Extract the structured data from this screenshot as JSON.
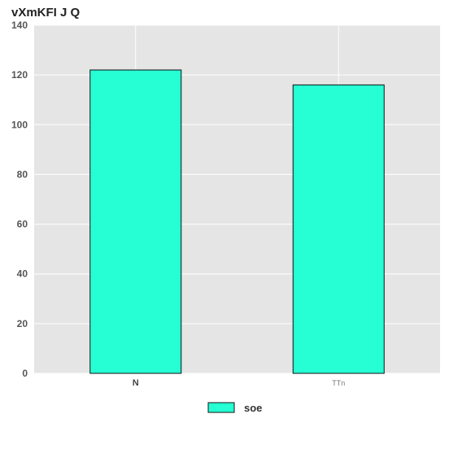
{
  "chart_data": {
    "type": "bar",
    "title": "vXmKFI J Q",
    "xlabel": "",
    "ylabel": "",
    "categories": [
      "N",
      "TTn"
    ],
    "series": [
      {
        "name": "soe",
        "values": [
          122,
          116
        ],
        "color": "#26ffd4"
      }
    ],
    "ylim": [
      0,
      140
    ],
    "yticks": [
      0,
      20,
      40,
      60,
      80,
      100,
      120,
      140
    ],
    "grid": true,
    "legend_position": "bottom-center",
    "background_color": "#e5e5e5",
    "grid_color": "#ffffff"
  }
}
